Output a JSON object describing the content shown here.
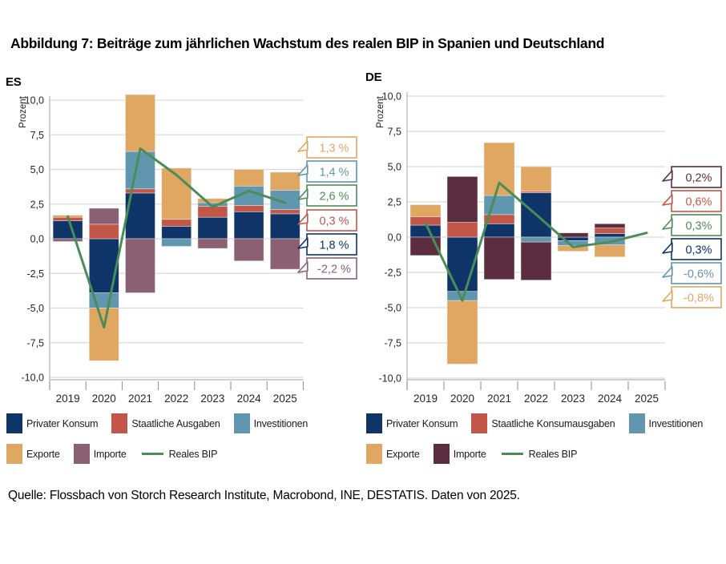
{
  "title": "Abbildung 7: Beiträge zum jährlichen Wachstum des realen BIP in Spanien und Deutschland",
  "source": "Quelle: Flossbach von Storch Research Institute, Macrobond, INE, DESTATIS. Daten von 2025.",
  "colors": {
    "privater_konsum": "#0e3468",
    "staatliche": "#c25749",
    "investitionen": "#6096ae",
    "exporte": "#e0a763",
    "importe_es": "#8b6073",
    "importe_de": "#5c2c3f",
    "reales_bip": "#4c8c59",
    "grid": "#d9d9d9",
    "axis": "#b3b3b3",
    "tick_text": "#262626"
  },
  "chart_data": [
    {
      "type": "bar",
      "title": "ES",
      "ylabel": "Prozent",
      "ylim": [
        -10,
        10
      ],
      "ytick_step": 2.5,
      "grid": true,
      "legend_position": "bottom",
      "categories": [
        "2019",
        "2020",
        "2021",
        "2022",
        "2023",
        "2024",
        "2025"
      ],
      "series": [
        {
          "name": "Privater Konsum",
          "color": "#0e3468",
          "values": [
            1.3,
            -3.9,
            3.3,
            0.9,
            1.55,
            1.95,
            1.8
          ]
        },
        {
          "name": "Staatliche Ausgaben",
          "color": "#c25749",
          "values": [
            0.25,
            1.05,
            0.3,
            0.5,
            0.8,
            0.45,
            0.3
          ]
        },
        {
          "name": "Investitionen",
          "color": "#6096ae",
          "values": [
            0,
            -1.1,
            2.7,
            -0.55,
            0.25,
            1.4,
            1.4
          ]
        },
        {
          "name": "Exporte",
          "color": "#e0a763",
          "values": [
            0.15,
            -3.8,
            4.1,
            3.7,
            0.3,
            1.2,
            1.3
          ]
        },
        {
          "name": "Importe",
          "color": "#8b6073",
          "values": [
            -0.2,
            1.15,
            -3.9,
            0,
            -0.7,
            -1.6,
            -2.2
          ]
        }
      ],
      "line": {
        "name": "Reales BIP",
        "color": "#4c8c59",
        "values": [
          1.6,
          -6.4,
          6.5,
          4.6,
          2.3,
          3.45,
          2.6
        ]
      },
      "callouts": [
        {
          "label": "1,3 %",
          "color": "#e0a763"
        },
        {
          "label": "1,4 %",
          "color": "#6096ae"
        },
        {
          "label": "2,6 %",
          "color": "#4c8c59"
        },
        {
          "label": "0,3 %",
          "color": "#c25749"
        },
        {
          "label": "1,8 %",
          "color": "#0e3468"
        },
        {
          "label": "-2,2 %",
          "color": "#8b6073"
        }
      ]
    },
    {
      "type": "bar",
      "title": "DE",
      "ylabel": "Prozent",
      "ylim": [
        -10,
        10
      ],
      "ytick_step": 2.5,
      "grid": true,
      "legend_position": "bottom",
      "categories": [
        "2019",
        "2020",
        "2021",
        "2022",
        "2023",
        "2024",
        "2025"
      ],
      "series": [
        {
          "name": "Privater Konsum",
          "color": "#0e3468",
          "values": [
            0.85,
            -3.85,
            0.95,
            3.15,
            -0.25,
            0.25,
            null
          ]
        },
        {
          "name": "Staatliche Konsumausgaben",
          "color": "#c25749",
          "values": [
            0.6,
            1.05,
            0.65,
            0.1,
            0,
            0.4,
            null
          ]
        },
        {
          "name": "Investitionen",
          "color": "#6096ae",
          "values": [
            0,
            -0.65,
            1.35,
            -0.35,
            -0.35,
            -0.55,
            null
          ]
        },
        {
          "name": "Exporte",
          "color": "#e0a763",
          "values": [
            0.85,
            -4.5,
            3.75,
            1.75,
            -0.4,
            -0.85,
            null
          ]
        },
        {
          "name": "Importe",
          "color": "#5c2c3f",
          "values": [
            -1.3,
            3.25,
            -3.0,
            -2.7,
            0.3,
            0.3,
            null
          ]
        }
      ],
      "line": {
        "name": "Reales BIP",
        "color": "#4c8c59",
        "values": [
          1.0,
          -4.5,
          3.85,
          1.6,
          -0.7,
          -0.35,
          0.3
        ]
      },
      "callouts": [
        {
          "label": "0,2%",
          "color": "#5c2c3f"
        },
        {
          "label": "0,6%",
          "color": "#c25749"
        },
        {
          "label": "0,3%",
          "color": "#4c8c59"
        },
        {
          "label": "0,3%",
          "color": "#0e3468"
        },
        {
          "label": "-0,6%",
          "color": "#6096ae"
        },
        {
          "label": "-0,8%",
          "color": "#e0a763"
        }
      ]
    }
  ]
}
